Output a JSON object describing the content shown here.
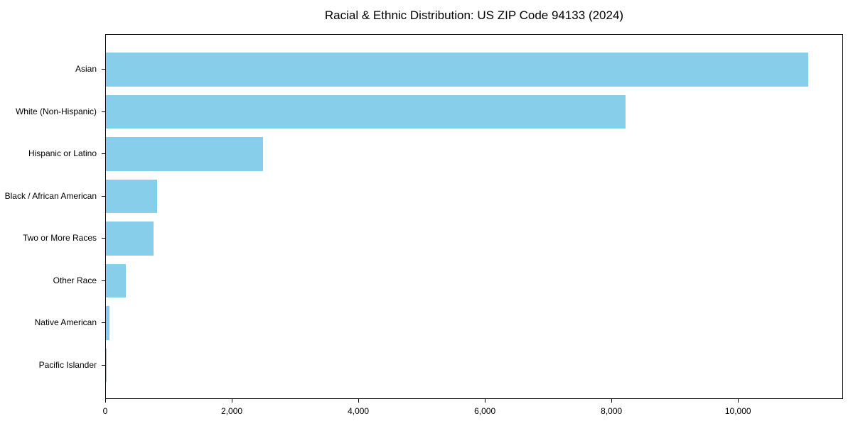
{
  "chart_data": {
    "type": "bar",
    "orientation": "horizontal",
    "title": "Racial & Ethnic Distribution: US ZIP Code 94133 (2024)",
    "categories": [
      "Asian",
      "White (Non-Hispanic)",
      "Hispanic or Latino",
      "Black / African American",
      "Two or More Races",
      "Other Race",
      "Native American",
      "Pacific Islander"
    ],
    "values": [
      11100,
      8210,
      2480,
      810,
      750,
      320,
      60,
      15
    ],
    "xlabel": "",
    "ylabel": "",
    "xlim": [
      0,
      11660
    ],
    "xticks": [
      0,
      2000,
      4000,
      6000,
      8000,
      10000
    ],
    "xtick_labels": [
      "0",
      "2,000",
      "4,000",
      "6,000",
      "8,000",
      "10,000"
    ],
    "bar_color": "#87CEEB",
    "background_color": "#ffffff",
    "axis_color": "#000000",
    "grid": false,
    "legend": null
  }
}
